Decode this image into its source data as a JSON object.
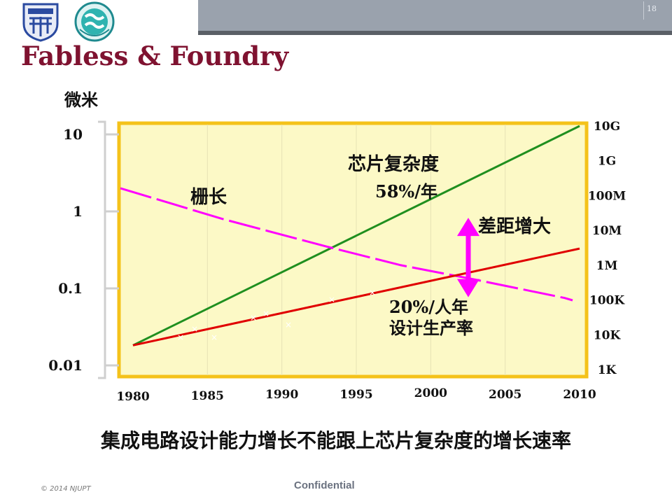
{
  "slide": {
    "number": "18",
    "title": "Fabless & Foundry",
    "caption": "集成电路设计能力增长不能跟上芯片复杂度的增长速率",
    "copyright": "© 2014 NJUPT",
    "confidential": "Confidential"
  },
  "logos": [
    {
      "name": "university-crest",
      "color": "#2a4aa0"
    },
    {
      "name": "sb-logo",
      "color": "#1f8a8f"
    }
  ],
  "chart_data": {
    "type": "line",
    "x": [
      1980,
      1985,
      1990,
      1995,
      2000,
      2005,
      2010
    ],
    "x_tick_labels": [
      "1980",
      "1985",
      "1990",
      "1995",
      "2000",
      "2005",
      "2010"
    ],
    "y_left_label": "微米",
    "y_left_scale": "log",
    "y_left_ticks": [
      10,
      1,
      0.1,
      0.01
    ],
    "y_left_tick_labels": [
      "10",
      "1",
      "0.1",
      "0.01"
    ],
    "y_right_scale": "log",
    "y_right_tick_labels": [
      "10G",
      "1G",
      "100M",
      "10M",
      "1M",
      "100K",
      "10K",
      "1K"
    ],
    "background": "#fcf9c6",
    "border": "#f4c21a",
    "series": [
      {
        "name": "芯片复杂度",
        "color": "#1f8f1f",
        "axis": "right",
        "x": [
          1980,
          2010
        ],
        "y": [
          5000,
          10000000000
        ]
      },
      {
        "name": "栅长",
        "color": "#ff00ff",
        "axis": "left",
        "dashed": true,
        "x": [
          1980,
          1986,
          1993,
          1998,
          2003,
          2009
        ],
        "y": [
          2.0,
          0.8,
          0.35,
          0.2,
          0.13,
          0.075
        ]
      },
      {
        "name": "设计生产率",
        "color": "#e00000",
        "axis": "right",
        "x": [
          1980,
          2010
        ],
        "y": [
          5000,
          3000000
        ]
      }
    ],
    "annotations": {
      "complexity_label": "芯片复杂度",
      "complexity_rate": "58%/年",
      "gate_label": "栅长",
      "gap_label": "差距增大",
      "productivity_rate": "20%/人年",
      "productivity_label": "设计生产率"
    },
    "gap_arrow": {
      "x": 2002,
      "y_top": 23000000,
      "y_bottom": 120000,
      "color": "#ff00ff"
    }
  }
}
